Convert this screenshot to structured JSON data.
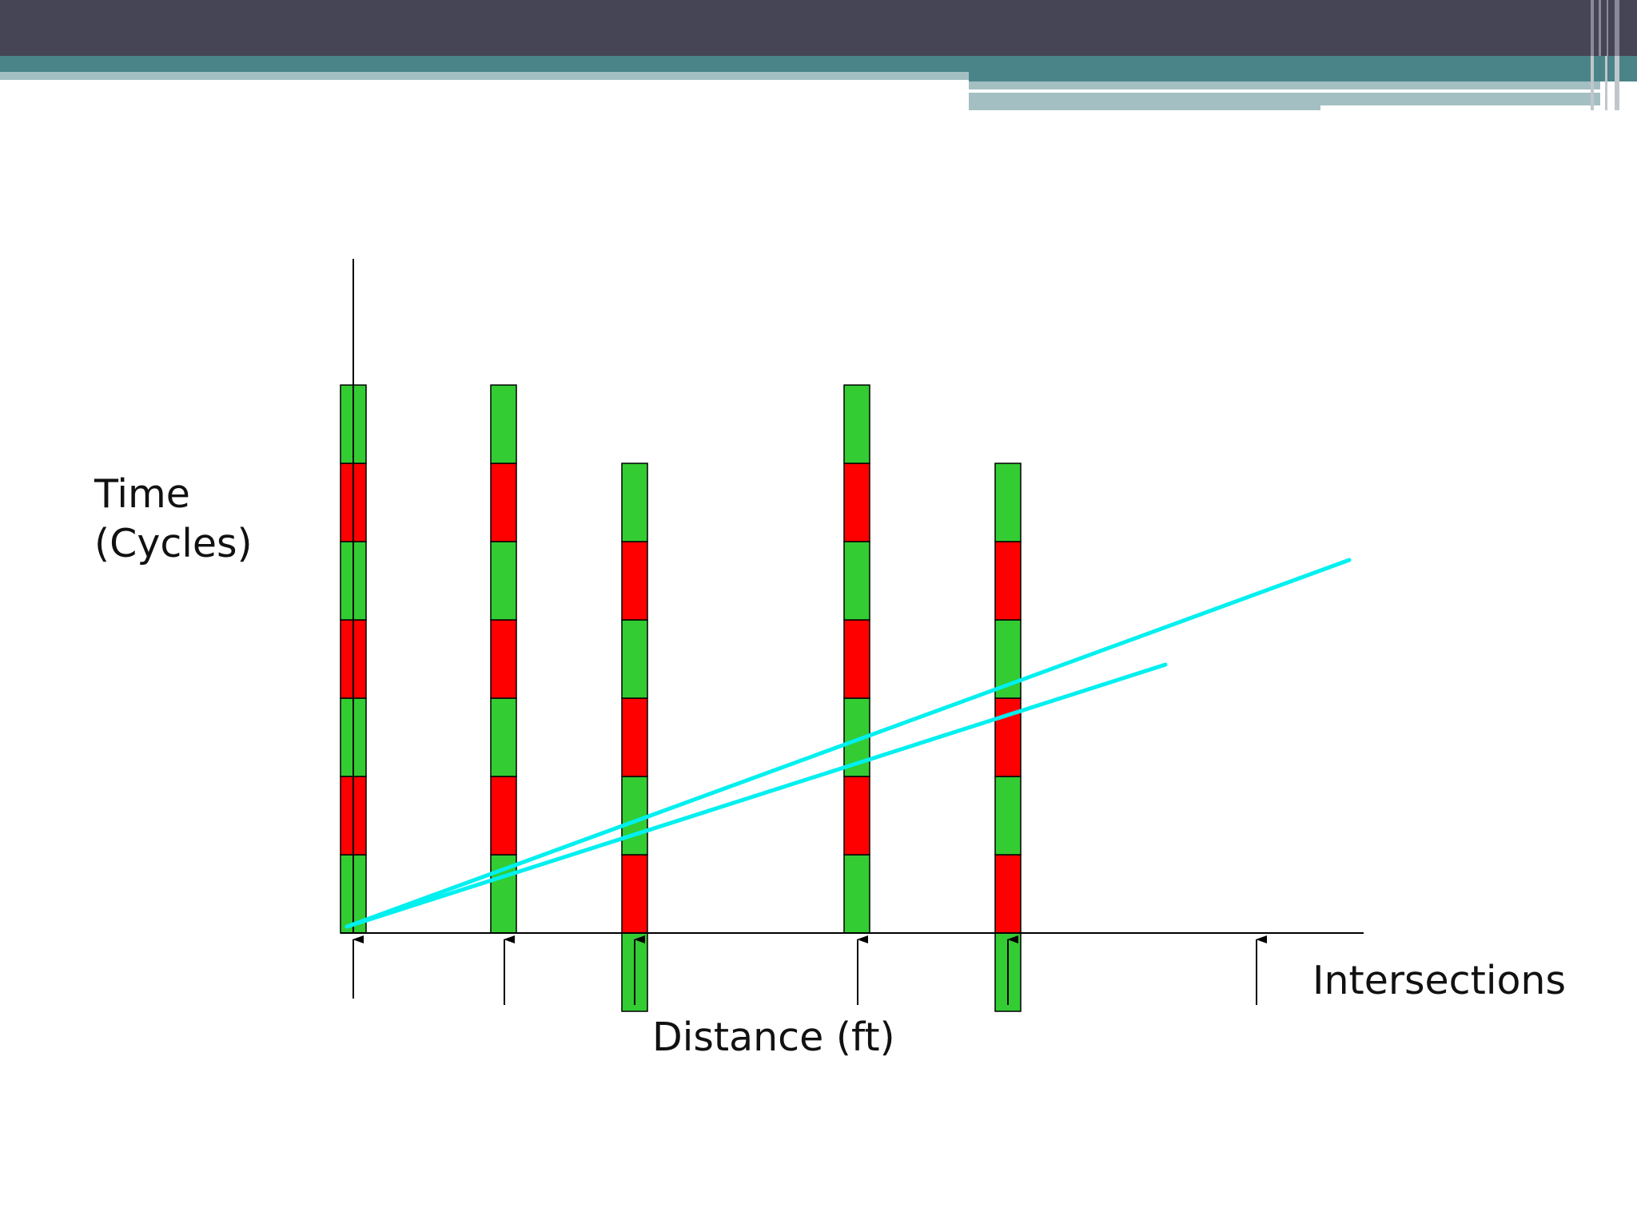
{
  "labels": {
    "time_line1": "Time",
    "time_line2": "(Cycles)",
    "distance": "Distance (ft)",
    "intersections": "Intersections"
  },
  "colors": {
    "header_dark": "#454556",
    "header_teal": "#4a8489",
    "header_light": "#a4bfc2",
    "green": "#33cc33",
    "red": "#ff0000",
    "trajectory": "#00f0f0",
    "axis": "#000000"
  },
  "signals": [
    {
      "name": "signal-1",
      "phases": [
        "green",
        "red",
        "green",
        "red",
        "green",
        "red",
        "green"
      ]
    },
    {
      "name": "signal-2",
      "phases": [
        "green",
        "red",
        "green",
        "red",
        "green",
        "red",
        "green"
      ]
    },
    {
      "name": "signal-3",
      "phases": [
        "green",
        "red",
        "green",
        "red",
        "green",
        "red",
        "green"
      ]
    },
    {
      "name": "signal-4",
      "phases": [
        "green",
        "red",
        "green",
        "red",
        "green",
        "red",
        "green"
      ]
    },
    {
      "name": "signal-5",
      "phases": [
        "green",
        "red",
        "green",
        "red",
        "green",
        "red",
        "green"
      ]
    }
  ],
  "intersection_count": 6,
  "trajectories": [
    {
      "name": "trajectory-upper"
    },
    {
      "name": "trajectory-lower"
    }
  ]
}
